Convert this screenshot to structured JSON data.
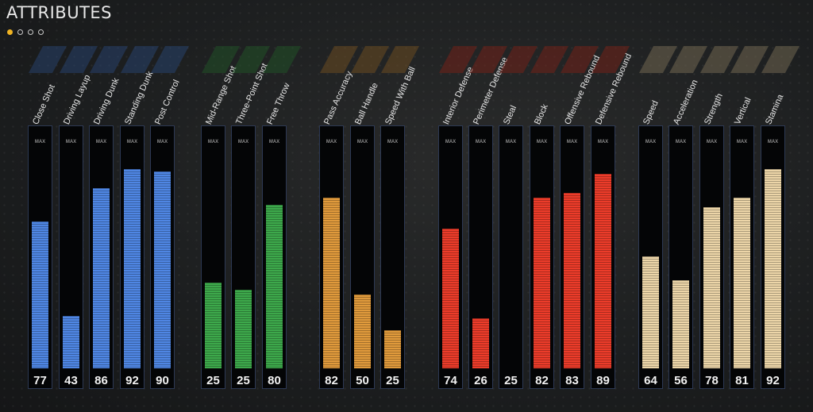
{
  "header": {
    "title": "ATTRIBUTES",
    "page_count": 4,
    "active_page": 0
  },
  "colors": {
    "page_dot_active": "#f0b323",
    "scoring": "#4f86e3",
    "shooting": "#3da84b",
    "playmaking": "#e09a3c",
    "defense": "#ec3c2a",
    "physical": "#ecd5a8"
  },
  "max_label": "MAX",
  "groups": [
    {
      "category": "scoring",
      "attributes": [
        {
          "name": "Close Shot",
          "value": 77,
          "bar_level": 0.62
        },
        {
          "name": "Driving Layup",
          "value": 43,
          "bar_level": 0.22
        },
        {
          "name": "Driving Dunk",
          "value": 86,
          "bar_level": 0.76
        },
        {
          "name": "Standing Dunk",
          "value": 92,
          "bar_level": 0.84
        },
        {
          "name": "Post Control",
          "value": 90,
          "bar_level": 0.83
        }
      ]
    },
    {
      "category": "shooting",
      "attributes": [
        {
          "name": "Mid-Range Shot",
          "value": 25,
          "bar_level": 0.36
        },
        {
          "name": "Three-Point Shot",
          "value": 25,
          "bar_level": 0.33
        },
        {
          "name": "Free Throw",
          "value": 80,
          "bar_level": 0.69
        }
      ]
    },
    {
      "category": "playmaking",
      "attributes": [
        {
          "name": "Pass Accuracy",
          "value": 82,
          "bar_level": 0.72
        },
        {
          "name": "Ball Handle",
          "value": 50,
          "bar_level": 0.31
        },
        {
          "name": "Speed With Ball",
          "value": 25,
          "bar_level": 0.16
        }
      ]
    },
    {
      "category": "defense",
      "attributes": [
        {
          "name": "Interior Defense",
          "value": 74,
          "bar_level": 0.59
        },
        {
          "name": "Perimeter Defense",
          "value": 26,
          "bar_level": 0.21
        },
        {
          "name": "Steal",
          "value": 25,
          "bar_level": 0
        },
        {
          "name": "Block",
          "value": 82,
          "bar_level": 0.72
        },
        {
          "name": "Offensive Rebound",
          "value": 83,
          "bar_level": 0.74
        },
        {
          "name": "Defensive Rebound",
          "value": 89,
          "bar_level": 0.82
        }
      ]
    },
    {
      "category": "physical",
      "attributes": [
        {
          "name": "Speed",
          "value": 64,
          "bar_level": 0.47
        },
        {
          "name": "Acceleration",
          "value": 56,
          "bar_level": 0.37
        },
        {
          "name": "Strength",
          "value": 78,
          "bar_level": 0.68
        },
        {
          "name": "Vertical",
          "value": 81,
          "bar_level": 0.72
        },
        {
          "name": "Stamina",
          "value": 92,
          "bar_level": 0.84
        }
      ]
    }
  ]
}
